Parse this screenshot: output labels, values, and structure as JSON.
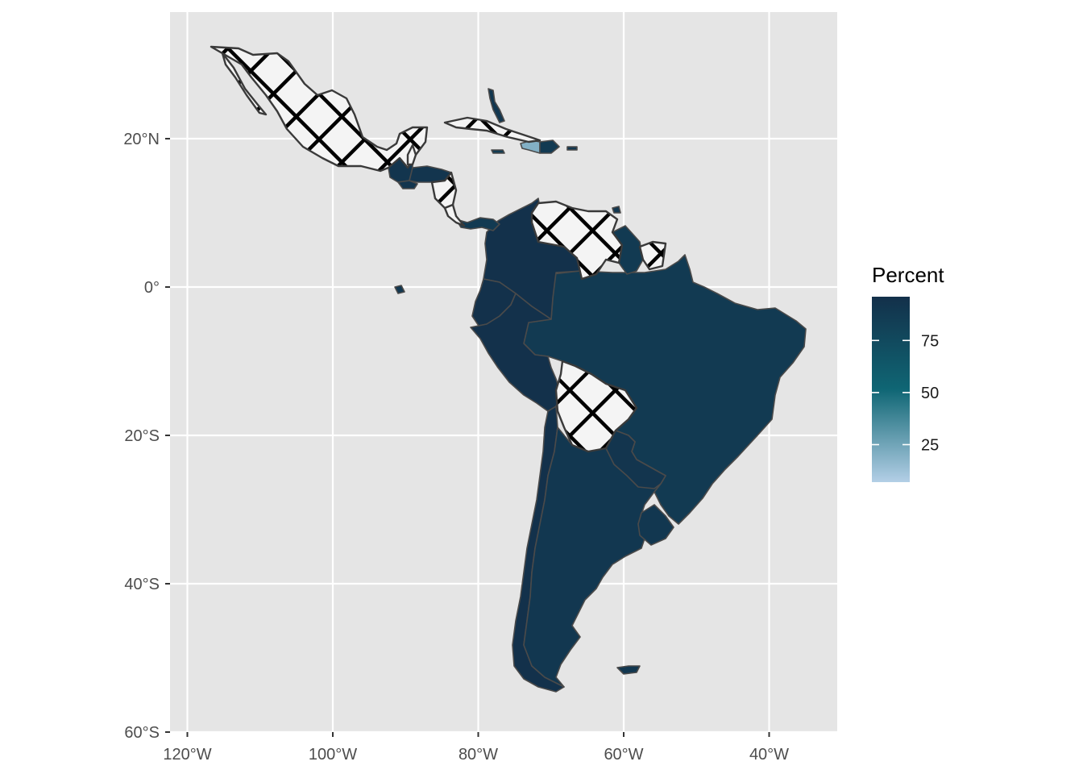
{
  "map": {
    "panel_background": "#e5e5e5",
    "grid_color": "#ffffff",
    "x_ticks": [
      {
        "lon": -120,
        "label": "120°W"
      },
      {
        "lon": -100,
        "label": "100°W"
      },
      {
        "lon": -80,
        "label": "80°W"
      },
      {
        "lon": -60,
        "label": "60°W"
      },
      {
        "lon": -40,
        "label": "40°W"
      }
    ],
    "y_ticks": [
      {
        "lat": 20,
        "label": "20°N"
      },
      {
        "lat": 0,
        "label": "0°"
      },
      {
        "lat": -20,
        "label": "20°S"
      },
      {
        "lat": -40,
        "label": "40°S"
      },
      {
        "lat": -60,
        "label": "60°S"
      }
    ],
    "lon_range": [
      -122.5,
      -31
    ],
    "lat_range": [
      -60,
      37
    ],
    "missing_data_fill": "crosshatch pattern (white with black diagonal lines)",
    "countries": [
      {
        "name": "Mexico",
        "value": null
      },
      {
        "name": "Guatemala",
        "value": 92
      },
      {
        "name": "Belize",
        "value": null
      },
      {
        "name": "Honduras",
        "value": 92
      },
      {
        "name": "El Salvador",
        "value": 92
      },
      {
        "name": "Nicaragua",
        "value": null
      },
      {
        "name": "Costa Rica",
        "value": null
      },
      {
        "name": "Panama",
        "value": 88
      },
      {
        "name": "Cuba",
        "value": null
      },
      {
        "name": "Haiti",
        "value": 20
      },
      {
        "name": "Dominican Republic",
        "value": 88
      },
      {
        "name": "Jamaica",
        "value": 85
      },
      {
        "name": "Colombia",
        "value": 95
      },
      {
        "name": "Venezuela",
        "value": null
      },
      {
        "name": "Guyana",
        "value": 88
      },
      {
        "name": "Suriname",
        "value": null
      },
      {
        "name": "Ecuador",
        "value": 95
      },
      {
        "name": "Peru",
        "value": 95
      },
      {
        "name": "Brazil",
        "value": 88
      },
      {
        "name": "Bolivia",
        "value": null
      },
      {
        "name": "Paraguay",
        "value": 92
      },
      {
        "name": "Chile",
        "value": 95
      },
      {
        "name": "Argentina",
        "value": 90
      },
      {
        "name": "Uruguay",
        "value": 90
      }
    ]
  },
  "legend": {
    "title": "Percent",
    "min": 7,
    "max": 96,
    "breaks": [
      {
        "value": 25,
        "label": "25"
      },
      {
        "value": 50,
        "label": "50"
      },
      {
        "value": 75,
        "label": "75"
      }
    ],
    "color_low": "#b3cfe6",
    "color_mid": "#0f6674",
    "color_high": "#13304a"
  }
}
